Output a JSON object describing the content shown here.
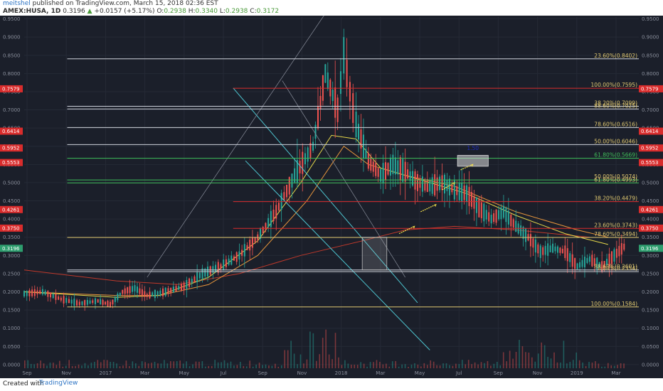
{
  "header": {
    "author": "meitshel",
    "published": "published on TradingView.com, March 15, 2018 02:36 EST",
    "symbol": "AMEX:HUSA, 1D",
    "last": "0.3196",
    "change": "+0.0157 (+5.17%)",
    "o_label": "O:",
    "o": "0.2938",
    "h_label": "H:",
    "h": "0.3340",
    "l_label": "L:",
    "l": "0.2938",
    "c_label": "C:",
    "c": "0.3172",
    "up_arrow": "▲"
  },
  "footer": {
    "created_with": "Created with",
    "logo_text": "TradingView"
  },
  "colors": {
    "background": "#1b1f2a",
    "up": "#26a69a",
    "down": "#ef5350",
    "fib_white": "#cfd3dc",
    "fib_red": "#d92c2c",
    "fib_green": "#3fbf5a",
    "fib_yellow": "#e0c870",
    "channel": "#4ec5d0",
    "ma_yellow": "#e6d84a",
    "ma_orange": "#e7963c",
    "ma_red": "#c0392b",
    "projection_arrow": "#f5e14a",
    "target_marker": "#1c2bbf"
  },
  "chart_data": {
    "type": "candlestick",
    "x_tick_labels": [
      "Sep",
      "Nov",
      "2017",
      "Mar",
      "May",
      "Jul",
      "Sep",
      "Nov",
      "2018",
      "Mar",
      "May",
      "Jul",
      "Sep",
      "Nov",
      "2019",
      "Mar"
    ],
    "y_tick_labels": [
      "0.9500",
      "0.9000",
      "0.8500",
      "0.8000",
      "0.7500",
      "0.7000",
      "0.6500",
      "0.6000",
      "0.5500",
      "0.5000",
      "0.4500",
      "0.4000",
      "0.3500",
      "0.3000",
      "0.2500",
      "0.2000",
      "0.1500",
      "0.1000",
      "0.0500",
      "0.0000"
    ],
    "ylim": [
      -0.01,
      0.955
    ],
    "price_tags": [
      {
        "value": "0.7579",
        "y": 0.7579,
        "color": "#d92c2c"
      },
      {
        "value": "0.6414",
        "y": 0.6414,
        "color": "#d92c2c"
      },
      {
        "value": "0.5952",
        "y": 0.5952,
        "color": "#d92c2c"
      },
      {
        "value": "0.5553",
        "y": 0.5553,
        "color": "#d92c2c"
      },
      {
        "value": "0.4261",
        "y": 0.4261,
        "color": "#d92c2c"
      },
      {
        "value": "0.3750",
        "y": 0.375,
        "color": "#d92c2c"
      },
      {
        "value": "0.3196",
        "y": 0.3196,
        "color": "#2e9e6e"
      }
    ],
    "fib_levels": [
      {
        "label": "23.60%(0.8402)",
        "y": 0.8402,
        "color": "#e0c870",
        "line": "#cfd3dc"
      },
      {
        "label": "100.00%(0.7595)",
        "y": 0.7595,
        "color": "#e0c870",
        "line": "#d92c2c"
      },
      {
        "label": "38.20%(0.7099)",
        "y": 0.7099,
        "color": "#e0c870",
        "line": "#cfd3dc"
      },
      {
        "label": "88.60%(0.7025)",
        "y": 0.7025,
        "color": "#e0c870",
        "line": "#cfd3dc"
      },
      {
        "label": "78.60%(0.6516)",
        "y": 0.6516,
        "color": "#e0c870",
        "line": "#cfd3dc"
      },
      {
        "label": "50.00%(0.6046)",
        "y": 0.6046,
        "color": "#e0c870",
        "line": "#cfd3dc"
      },
      {
        "label": "61.80%(0.5669)",
        "y": 0.5669,
        "color": "#3fbf5a",
        "line": "#3fbf5a"
      },
      {
        "label": "50.00%(0.5074)",
        "y": 0.5074,
        "color": "#e0c870",
        "line": "#3fbf5a"
      },
      {
        "label": "61.80%(0.4993)",
        "y": 0.4993,
        "color": "#e0c870",
        "line": "#3fbf5a"
      },
      {
        "label": "38.20%(0.4479)",
        "y": 0.4479,
        "color": "#e0c870",
        "line": "#d92c2c"
      },
      {
        "label": "23.60%(0.3743)",
        "y": 0.3743,
        "color": "#e0c870",
        "line": "#d92c2c"
      },
      {
        "label": "78.60%(0.3494)",
        "y": 0.3494,
        "color": "#e0c870",
        "line": "#e0c870"
      },
      {
        "label": "88.60%(0.2601)",
        "y": 0.2601,
        "color": "#e0c870",
        "line": "#cfd3dc"
      },
      {
        "label": "0.00%(0.2554)",
        "y": 0.2554,
        "color": "#e0c870",
        "line": "#cfd3dc"
      },
      {
        "label": "100.00%(0.1584)",
        "y": 0.1584,
        "color": "#e0c870",
        "line": "#e0c870"
      }
    ],
    "target_text": "1.50",
    "grid": true,
    "series": [
      {
        "name": "HUSA daily price",
        "note": "candles approximated from the visible path",
        "path": [
          [
            0,
            0.195
          ],
          [
            3,
            0.2
          ],
          [
            6,
            0.18
          ],
          [
            9,
            0.168
          ],
          [
            12,
            0.175
          ],
          [
            14,
            0.165
          ],
          [
            16,
            0.2
          ],
          [
            18,
            0.21
          ],
          [
            20,
            0.19
          ],
          [
            23,
            0.2
          ],
          [
            26,
            0.215
          ],
          [
            29,
            0.25
          ],
          [
            32,
            0.27
          ],
          [
            35,
            0.3
          ],
          [
            38,
            0.35
          ],
          [
            41,
            0.42
          ],
          [
            44,
            0.52
          ],
          [
            47,
            0.6
          ],
          [
            49,
            0.8
          ],
          [
            51,
            0.7
          ],
          [
            52,
            0.85
          ],
          [
            53,
            0.75
          ],
          [
            54,
            0.66
          ],
          [
            56,
            0.56
          ],
          [
            58,
            0.52
          ],
          [
            60,
            0.55
          ],
          [
            62,
            0.53
          ],
          [
            64,
            0.5
          ],
          [
            66,
            0.49
          ],
          [
            68,
            0.5
          ],
          [
            70,
            0.48
          ],
          [
            72,
            0.47
          ],
          [
            74,
            0.43
          ],
          [
            76,
            0.4
          ],
          [
            78,
            0.42
          ],
          [
            80,
            0.38
          ],
          [
            82,
            0.35
          ],
          [
            84,
            0.31
          ],
          [
            86,
            0.32
          ],
          [
            88,
            0.31
          ],
          [
            90,
            0.27
          ],
          [
            92,
            0.29
          ],
          [
            94,
            0.27
          ],
          [
            96,
            0.3
          ],
          [
            98,
            0.33
          ]
        ]
      },
      {
        "name": "Volume",
        "values": [
          0.01,
          0.02,
          0.015,
          0.03,
          0.04,
          0.06,
          0.12,
          0.08,
          0.05,
          0.04,
          0.03,
          0.02,
          0.04,
          0.03,
          0.02,
          0.03
        ]
      }
    ]
  }
}
